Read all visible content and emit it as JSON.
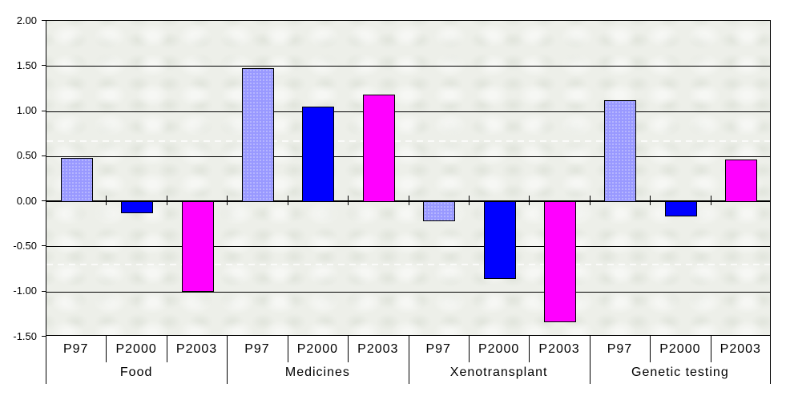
{
  "chart_data": {
    "type": "bar",
    "title": "",
    "categories": [
      "Food",
      "Medicines",
      "Xenotransplant",
      "Genetic testing"
    ],
    "sub_categories": [
      "P97",
      "P2000",
      "P2003"
    ],
    "series": [
      {
        "name": "P97",
        "color": "#9999FF",
        "values": [
          0.48,
          1.48,
          -0.22,
          1.12
        ]
      },
      {
        "name": "P2000",
        "color": "#0000FF",
        "values": [
          -0.13,
          1.05,
          -0.86,
          -0.17
        ]
      },
      {
        "name": "P2003",
        "color": "#FF00FF",
        "values": [
          -1.0,
          1.18,
          -1.34,
          0.46
        ]
      }
    ],
    "ylim": [
      -1.5,
      2.0
    ],
    "ytick_step": 0.5,
    "ytick_labels": [
      "2.00",
      "1.50",
      "1.00",
      "0.50",
      "0.00",
      "-0.50",
      "-1.00",
      "-1.50"
    ],
    "grid": true,
    "legend_position": "none",
    "plot_bg_color": "#edefe9",
    "gridline_color": "#000000",
    "bar_border_color": "#000000"
  }
}
